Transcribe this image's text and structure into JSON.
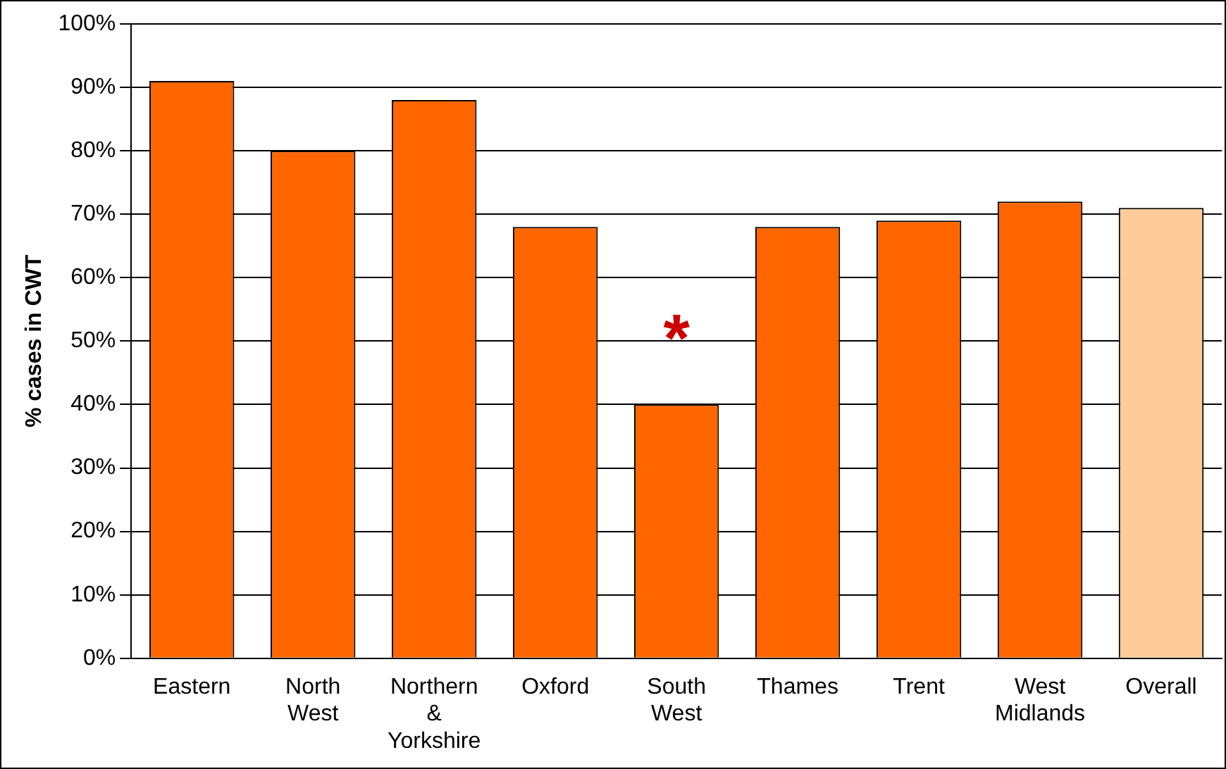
{
  "chart_data": {
    "type": "bar",
    "ylabel": "% cases in CWT",
    "categories": [
      "Eastern",
      "North West",
      "Northern & Yorkshire",
      "Oxford",
      "South West",
      "Thames",
      "Trent",
      "West Midlands",
      "Overall"
    ],
    "values": [
      91,
      80,
      88,
      68,
      40,
      68,
      69,
      72,
      71
    ],
    "colors": [
      "#ff6600",
      "#ff6600",
      "#ff6600",
      "#ff6600",
      "#ff6600",
      "#ff6600",
      "#ff6600",
      "#ff6600",
      "#ffcc99"
    ],
    "ylim": [
      0,
      100
    ],
    "yticks": [
      {
        "value": 0,
        "label": "0%"
      },
      {
        "value": 10,
        "label": "10%"
      },
      {
        "value": 20,
        "label": "20%"
      },
      {
        "value": 30,
        "label": "30%"
      },
      {
        "value": 40,
        "label": "40%"
      },
      {
        "value": 50,
        "label": "50%"
      },
      {
        "value": 60,
        "label": "60%"
      },
      {
        "value": 70,
        "label": "70%"
      },
      {
        "value": 80,
        "label": "80%"
      },
      {
        "value": 90,
        "label": "90%"
      },
      {
        "value": 100,
        "label": "100%"
      }
    ],
    "grid": "y",
    "legend": false,
    "annotations": [
      "*"
    ]
  }
}
